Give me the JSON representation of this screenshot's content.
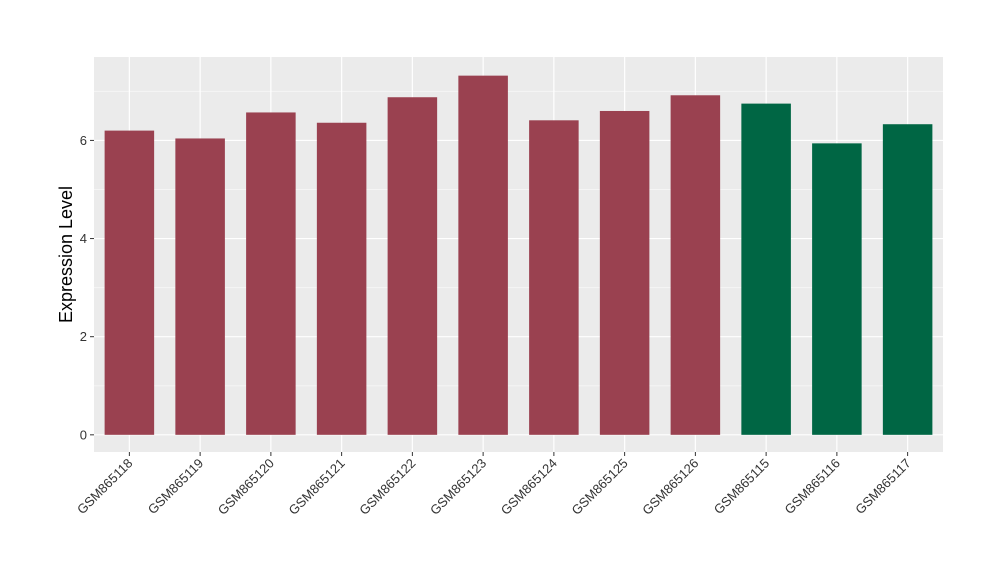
{
  "chart_data": {
    "type": "bar",
    "title": "",
    "xlabel": "",
    "ylabel": "Expression Level",
    "ylim": [
      -0.35,
      7.7
    ],
    "yticks": [
      0,
      2,
      4,
      6
    ],
    "ytick_labels": [
      "0",
      "2",
      "4",
      "6"
    ],
    "grid": true,
    "legend": "none",
    "categories": [
      "GSM865118",
      "GSM865119",
      "GSM865120",
      "GSM865121",
      "GSM865122",
      "GSM865123",
      "GSM865124",
      "GSM865125",
      "GSM865126",
      "GSM865115",
      "GSM865116",
      "GSM865117"
    ],
    "values": [
      6.2,
      6.04,
      6.57,
      6.36,
      6.88,
      7.32,
      6.41,
      6.6,
      6.92,
      6.75,
      5.94,
      6.33
    ],
    "groups": [
      "a",
      "a",
      "a",
      "a",
      "a",
      "a",
      "a",
      "a",
      "a",
      "b",
      "b",
      "b"
    ],
    "colors": {
      "a": "#9a4150",
      "b": "#006644",
      "panel": "#ebebeb",
      "grid_major": "#ffffff",
      "grid_minor": "#f5f5f5"
    }
  }
}
